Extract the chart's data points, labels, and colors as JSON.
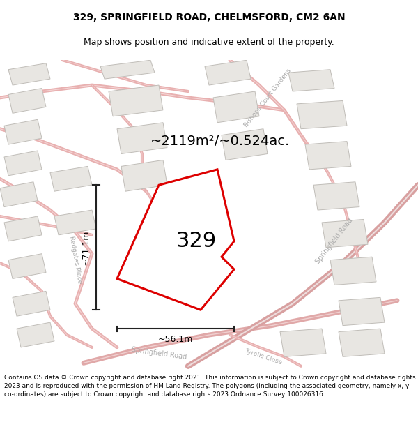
{
  "title_line1": "329, SPRINGFIELD ROAD, CHELMSFORD, CM2 6AN",
  "title_line2": "Map shows position and indicative extent of the property.",
  "area_label": "~2119m²/~0.524ac.",
  "number_label": "329",
  "width_label": "~56.1m",
  "height_label": "~71.1m",
  "footer_text": "Contains OS data © Crown copyright and database right 2021. This information is subject to Crown copyright and database rights 2023 and is reproduced with the permission of HM Land Registry. The polygons (including the associated geometry, namely x, y co-ordinates) are subject to Crown copyright and database rights 2023 Ordnance Survey 100026316.",
  "map_bg_color": "#f5f3f0",
  "plot_outline_color": "#dd0000",
  "road_outline_color": "#e8b0b0",
  "road_fill_color": "#f8e8e8",
  "building_color": "#e8e6e2",
  "building_edge_color": "#c8c5c0",
  "road_label_color": "#aaaaaa",
  "dim_line_color": "#222222",
  "white": "#ffffff",
  "title_fontsize": 10,
  "subtitle_fontsize": 9,
  "area_fontsize": 14,
  "number_fontsize": 22,
  "dim_fontsize": 9,
  "road_label_fontsize": 7,
  "footer_fontsize": 6.5
}
